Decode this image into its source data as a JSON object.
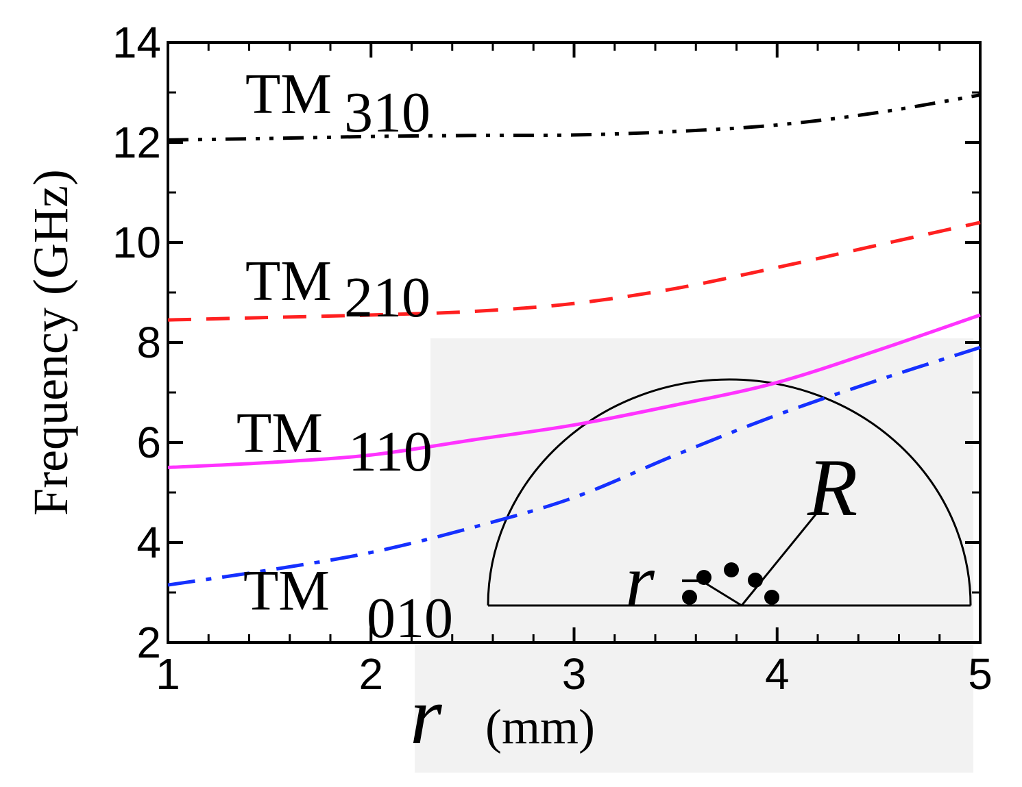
{
  "chart_data": {
    "type": "line",
    "title": "",
    "xlabel_var": "r",
    "xlabel_unit": "(mm)",
    "ylabel": "Frequency (GHz)",
    "xlim": [
      1,
      5
    ],
    "ylim": [
      2,
      14
    ],
    "xticks": [
      1,
      2,
      3,
      4,
      5
    ],
    "yticks": [
      2,
      4,
      6,
      8,
      10,
      12,
      14
    ],
    "x": [
      1.0,
      1.5,
      2.0,
      2.5,
      3.0,
      3.5,
      4.0,
      4.5,
      5.0
    ],
    "series": [
      {
        "name": "TM",
        "sub": "310",
        "color": "#000000",
        "dash": "dashdotdot",
        "values": [
          12.05,
          12.08,
          12.12,
          12.14,
          12.15,
          12.22,
          12.35,
          12.6,
          12.95
        ]
      },
      {
        "name": "TM",
        "sub": "210",
        "color": "#ff2020",
        "dash": "dash",
        "values": [
          8.45,
          8.5,
          8.55,
          8.62,
          8.78,
          9.08,
          9.5,
          9.95,
          10.4
        ]
      },
      {
        "name": "TM",
        "sub": "110",
        "color": "#ff33ff",
        "dash": "solid",
        "values": [
          5.5,
          5.6,
          5.75,
          6.05,
          6.35,
          6.75,
          7.2,
          7.85,
          8.55
        ]
      },
      {
        "name": "TM",
        "sub": "010",
        "color": "#1530ff",
        "dash": "dashdot",
        "values": [
          3.15,
          3.45,
          3.8,
          4.3,
          4.9,
          5.75,
          6.55,
          7.25,
          7.9
        ]
      }
    ],
    "inset": {
      "label_outer": "R",
      "label_inner": "r"
    }
  }
}
